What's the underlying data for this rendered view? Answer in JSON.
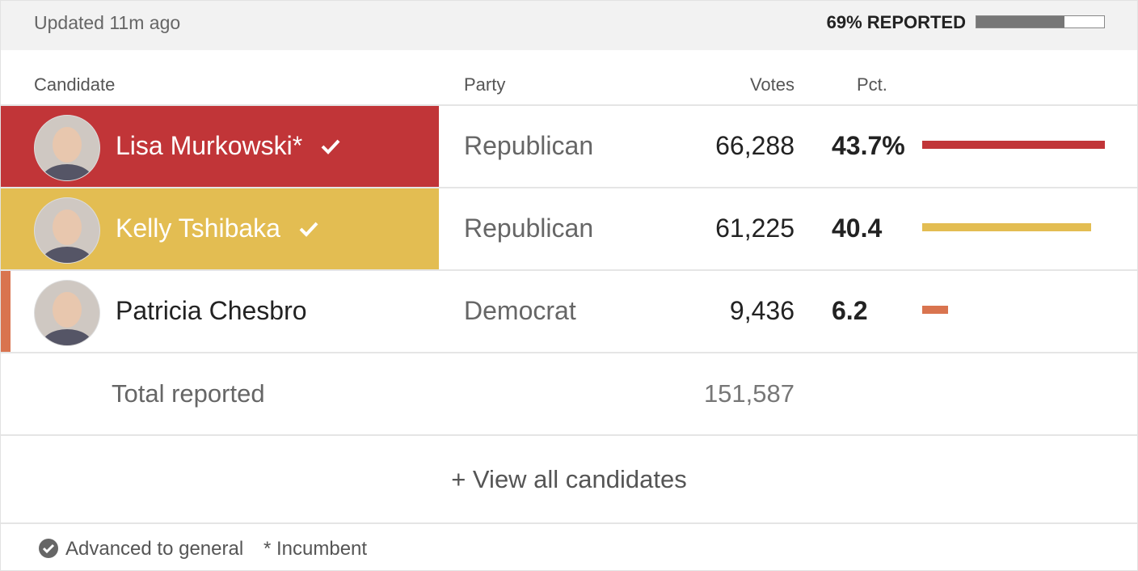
{
  "header": {
    "updated": "Updated 11m ago",
    "reported": {
      "value": 69,
      "label": "69% REPORTED"
    }
  },
  "table": {
    "columns": [
      "Candidate",
      "Party",
      "Votes",
      "Pct."
    ],
    "rows": [
      {
        "name": "Lisa Murkowski*",
        "party": "Republican",
        "votes": "66,288",
        "pct": {
          "value": 43.7,
          "label": "43.7%"
        },
        "color": "#c13538",
        "highlight": true,
        "advanced": true
      },
      {
        "name": "Kelly Tshibaka",
        "party": "Republican",
        "votes": "61,225",
        "pct": 40.4,
        "color": "#e3bd52",
        "highlight": true,
        "advanced": true
      },
      {
        "name": "Patricia Chesbro",
        "party": "Democrat",
        "votes": "9,436",
        "pct": 6.2,
        "color": "#d9744f",
        "highlight": false,
        "advanced": false
      }
    ],
    "total": {
      "label": "Total reported",
      "votes": "151,587"
    }
  },
  "view_all": "+ View all candidates",
  "footer": {
    "advanced": "Advanced to general",
    "incumbent": "* Incumbent"
  }
}
